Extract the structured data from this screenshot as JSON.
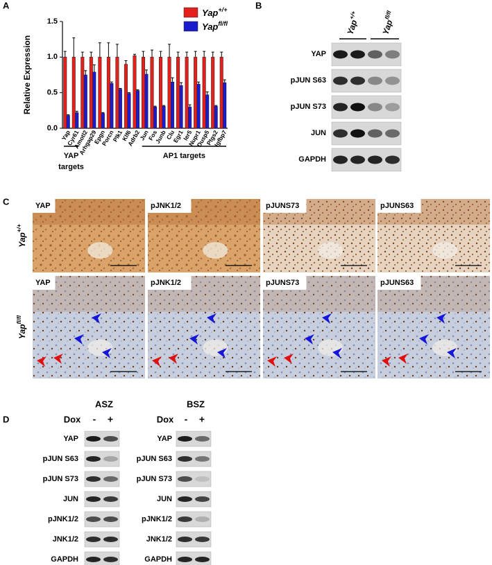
{
  "panel_labels": [
    "A",
    "B",
    "C",
    "D"
  ],
  "chart_data": {
    "type": "bar",
    "y_label": "Relative Expression",
    "categories": [
      "Yap",
      "Cyr61",
      "Amotl2",
      "Arhgap29",
      "Epgn",
      "Porcn",
      "Plk1",
      "Klf6",
      "Adrb2",
      "Jun",
      "Fos",
      "Junb",
      "Clu",
      "Egr1",
      "Ier5",
      "Nupr1",
      "Dusp5",
      "Ptgs2",
      "Igfbp7"
    ],
    "series": [
      {
        "name": "Yap",
        "sup": "+/+",
        "color": "#e3201b",
        "values": [
          1.0,
          1.0,
          1.0,
          1.0,
          1.0,
          1.0,
          1.0,
          0.9,
          1.02,
          1.0,
          1.0,
          1.0,
          1.0,
          1.0,
          1.0,
          1.0,
          1.0,
          1.0,
          1.0
        ],
        "errors": [
          0.08,
          0.27,
          0.07,
          0.07,
          0.2,
          0.2,
          0.18,
          0.05,
          0.02,
          0.08,
          0.1,
          0.08,
          0.18,
          0.07,
          0.07,
          0.08,
          0.08,
          0.07,
          0.07
        ]
      },
      {
        "name": "Yap",
        "sup": "fl/fl",
        "color": "#1c1ccf",
        "values": [
          0.18,
          0.22,
          0.75,
          0.79,
          0.21,
          0.63,
          0.55,
          0.49,
          0.53,
          0.76,
          0.3,
          0.31,
          0.65,
          0.6,
          0.3,
          0.62,
          0.47,
          0.31,
          0.64
        ],
        "errors": [
          0.01,
          0.02,
          0.06,
          0.1,
          0.01,
          0.02,
          0.01,
          0.01,
          0.01,
          0.06,
          0.01,
          0.01,
          0.06,
          0.04,
          0.03,
          0.03,
          0.04,
          0.01,
          0.04
        ]
      }
    ],
    "ylim": [
      0,
      1.5
    ],
    "yticks": [
      {
        "value": 0,
        "label": "0.0"
      },
      0.5,
      {
        "value": 1,
        "label": "1.0"
      },
      1.5
    ],
    "groups": [
      {
        "label": [
          "YAP",
          "targets"
        ],
        "from": 0,
        "to": 1
      },
      {
        "label": [
          "AP1 targets"
        ],
        "from": 9,
        "to": 18
      }
    ]
  },
  "panel_b": {
    "columns": [
      {
        "name": "Yap",
        "sup": "+/+"
      },
      {
        "name": "Yap",
        "sup": "fl/fl"
      }
    ],
    "rows": [
      "YAP",
      "pJUN S63",
      "pJUN S73",
      "JUN",
      "GAPDH"
    ]
  },
  "panel_c": {
    "rows": [
      {
        "name": "Yap",
        "sup": "+/+"
      },
      {
        "name": "Yap",
        "sup": "fl/fl"
      }
    ],
    "columns": [
      "YAP",
      "pJNK1/2",
      "pJUNS73",
      "pJUNS63"
    ]
  },
  "panel_d": {
    "blots": [
      {
        "title": "ASZ",
        "treatment": "Dox",
        "conditions": [
          "-",
          "+"
        ],
        "rows": [
          "YAP",
          "pJUN S63",
          "pJUN S73",
          "JUN",
          "pJNK1/2",
          "JNK1/2",
          "GAPDH"
        ]
      },
      {
        "title": "BSZ",
        "treatment": "Dox",
        "conditions": [
          "-",
          "+"
        ],
        "rows": [
          "YAP",
          "pJUN S63",
          "pJUN S73",
          "JUN",
          "pJNK1/2",
          "JNK1/2",
          "GAPDH"
        ]
      }
    ]
  }
}
